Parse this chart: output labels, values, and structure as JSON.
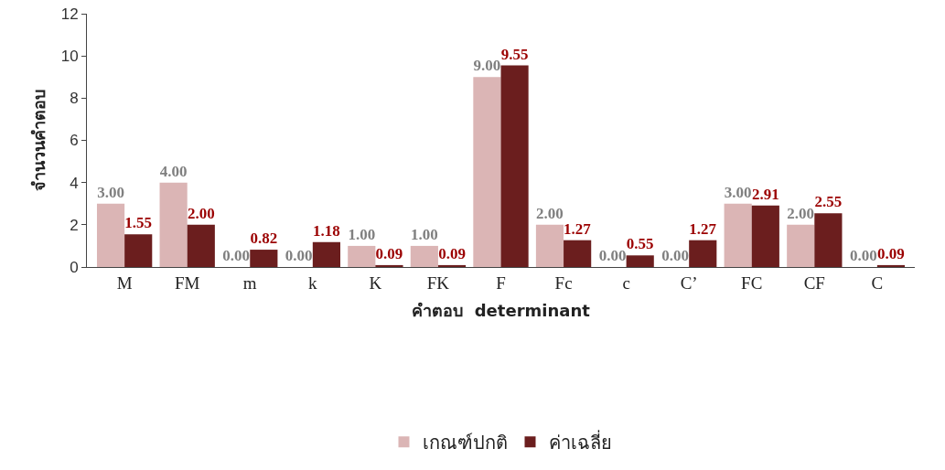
{
  "chart_data": {
    "type": "bar",
    "xlabel": "คำตอบ  determinant",
    "ylabel": "จำนวนคำตอบ",
    "categories": [
      "M",
      "FM",
      "m",
      "k",
      "K",
      "FK",
      "F",
      "Fc",
      "c",
      "C’",
      "FC",
      "CF",
      "C"
    ],
    "series": [
      {
        "name": "เกณฑ์ปกติ",
        "color": "#dbb5b5",
        "values": [
          3,
          4,
          0,
          0,
          1,
          1,
          9,
          2,
          0,
          0,
          3,
          2,
          0
        ],
        "value_labels": [
          "3.00",
          "4.00",
          "0.00",
          "0.00",
          "1.00",
          "1.00",
          "9.00",
          "2.00",
          "0.00",
          "0.00",
          "3.00",
          "2.00",
          "0.00"
        ]
      },
      {
        "name": "ค่าเฉลี่ย",
        "color": "#6b1e1e",
        "values": [
          1.55,
          2.0,
          0.82,
          1.18,
          0.09,
          0.09,
          9.55,
          1.27,
          0.55,
          1.27,
          2.91,
          2.55,
          0.09
        ],
        "value_labels": [
          "1.55",
          "2.00",
          "0.82",
          "1.18",
          "0.09",
          "0.09",
          "9.55",
          "1.27",
          "0.55",
          "1.27",
          "2.91",
          "2.55",
          "0.09"
        ]
      }
    ],
    "ylim": [
      0,
      12
    ],
    "yticks": [
      0,
      2,
      4,
      6,
      8,
      10,
      12
    ],
    "grid": false,
    "legend": "bottom"
  }
}
